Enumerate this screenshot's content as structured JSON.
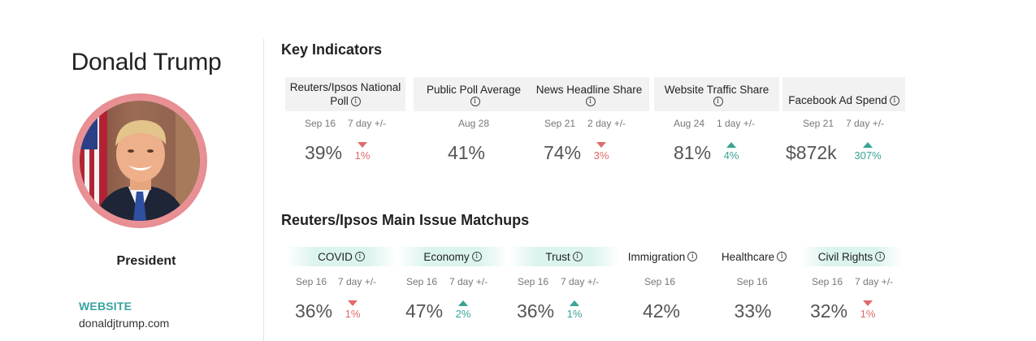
{
  "profile": {
    "name": "Donald Trump",
    "role": "President",
    "website_label": "WEBSITE",
    "website_url": "donaldjtrump.com"
  },
  "key_indicators": {
    "title": "Key Indicators",
    "cards": [
      {
        "label_1": "Reuters/Ipsos National",
        "label_2": "Poll",
        "date": "Sep 16",
        "delta_label": "7 day +/-",
        "value": "39%",
        "change": "1%",
        "direction": "down"
      },
      {
        "label_1": "Public Poll Average",
        "label_2": "",
        "date": "Aug 28",
        "delta_label": "",
        "value": "41%",
        "change": "",
        "direction": ""
      },
      {
        "label_1": "News Headline Share",
        "label_2": "",
        "date": "Sep 21",
        "delta_label": "2 day +/-",
        "value": "74%",
        "change": "3%",
        "direction": "down"
      },
      {
        "label_1": "Website Traffic Share",
        "label_2": "",
        "date": "Aug 24",
        "delta_label": "1 day +/-",
        "value": "81%",
        "change": "4%",
        "direction": "up"
      },
      {
        "label_1": "Facebook Ad Spend",
        "label_2": "",
        "date": "Sep 21",
        "delta_label": "7 day +/-",
        "value": "$872k",
        "change": "307%",
        "direction": "up"
      }
    ]
  },
  "matchups": {
    "title": "Reuters/Ipsos Main Issue Matchups",
    "cards": [
      {
        "label": "COVID",
        "date": "Sep 16",
        "delta_label": "7 day +/-",
        "value": "36%",
        "change": "1%",
        "direction": "down",
        "highlight": true
      },
      {
        "label": "Economy",
        "date": "Sep 16",
        "delta_label": "7 day +/-",
        "value": "47%",
        "change": "2%",
        "direction": "up",
        "highlight": true
      },
      {
        "label": "Trust",
        "date": "Sep 16",
        "delta_label": "7 day +/-",
        "value": "36%",
        "change": "1%",
        "direction": "up",
        "highlight": true
      },
      {
        "label": "Immigration",
        "date": "Sep 16",
        "delta_label": "",
        "value": "42%",
        "change": "",
        "direction": "",
        "highlight": false
      },
      {
        "label": "Healthcare",
        "date": "Sep 16",
        "delta_label": "",
        "value": "33%",
        "change": "",
        "direction": "",
        "highlight": false
      },
      {
        "label": "Civil Rights",
        "date": "Sep 16",
        "delta_label": "7 day +/-",
        "value": "32%",
        "change": "1%",
        "direction": "down",
        "highlight": true
      }
    ]
  },
  "icons": {
    "info": "info-icon",
    "up": "triangle-up-icon",
    "down": "triangle-down-icon"
  },
  "colors": {
    "accent": "#3aa3a0",
    "up": "#3aa394",
    "down": "#e06a6a",
    "avatar_ring": "#e99397",
    "pill": "#dcf4f0"
  }
}
